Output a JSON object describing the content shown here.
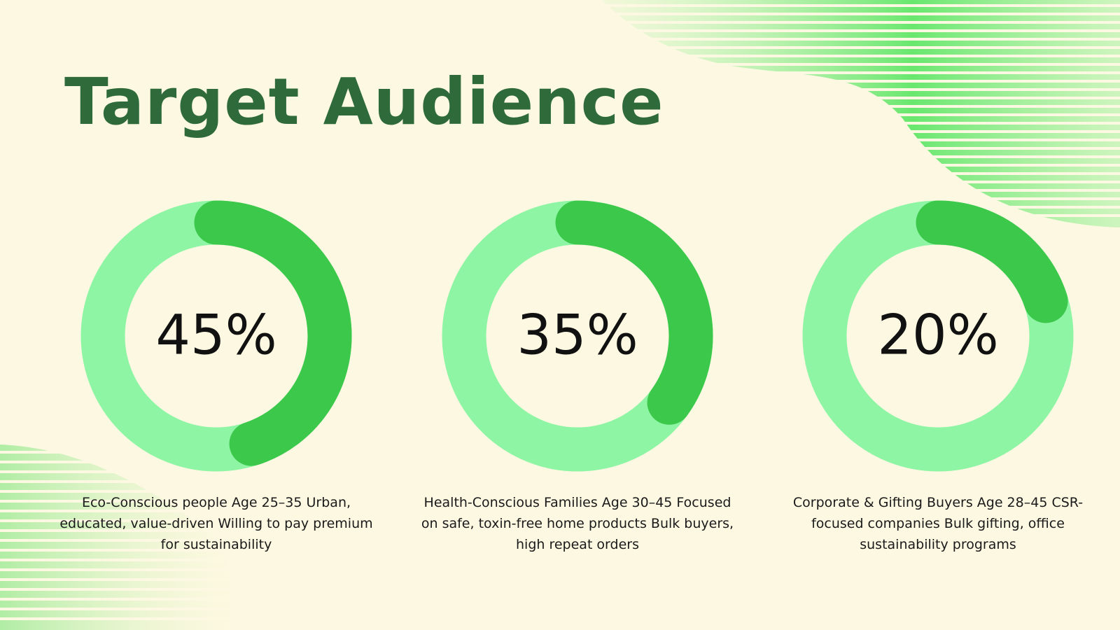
{
  "title": "Target Audience",
  "chart_data": [
    {
      "type": "donut",
      "values": [
        45
      ],
      "value_labels": [
        "45%"
      ],
      "color": "#3cc84a",
      "track_color": "#8ef5a5",
      "caption": "Eco-Conscious people Age 25–35 Urban, educated, value-driven Willing to pay premium for sustainability"
    },
    {
      "type": "donut",
      "values": [
        35
      ],
      "value_labels": [
        "35%"
      ],
      "color": "#3cc84a",
      "track_color": "#8ef5a5",
      "caption": "Health-Conscious Families Age 30–45 Focused on safe, toxin-free home products Bulk buyers, high repeat orders"
    },
    {
      "type": "donut",
      "values": [
        20
      ],
      "value_labels": [
        "20%"
      ],
      "color": "#3cc84a",
      "track_color": "#8ef5a5",
      "caption": "Corporate & Gifting Buyers Age 28–45 CSR-focused companies Bulk gifting, office sustainability programs"
    }
  ]
}
